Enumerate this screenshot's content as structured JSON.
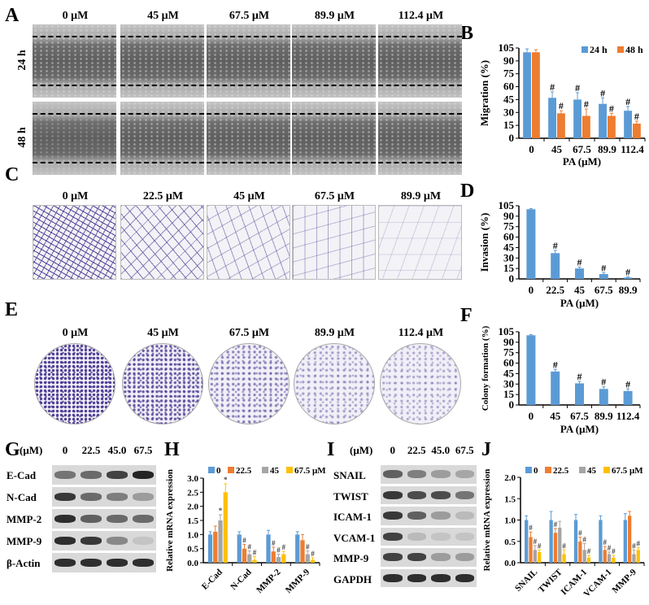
{
  "panels": {
    "A": {
      "label": "A",
      "columns": [
        "0 μM",
        "45 μM",
        "67.5 μM",
        "89.9 μM",
        "112.4 μM"
      ],
      "rows": [
        "24 h",
        "48 h"
      ]
    },
    "C": {
      "label": "C",
      "columns": [
        "0 μM",
        "22.5 μM",
        "45 μM",
        "67.5 μM",
        "89.9 μM"
      ]
    },
    "E": {
      "label": "E",
      "columns": [
        "0 μM",
        "45 μM",
        "67.5 μM",
        "89.9 μM",
        "112.4 μM"
      ]
    },
    "G": {
      "label": "G",
      "unit": "(μM)",
      "columns": [
        "0",
        "22.5",
        "45.0",
        "67.5"
      ],
      "rows": [
        {
          "name": "E-Cad",
          "band_intensity": [
            0.5,
            0.55,
            0.75,
            0.9
          ]
        },
        {
          "name": "N-Cad",
          "band_intensity": [
            0.8,
            0.55,
            0.45,
            0.3
          ]
        },
        {
          "name": "MMP-2",
          "band_intensity": [
            0.85,
            0.6,
            0.55,
            0.55
          ]
        },
        {
          "name": "MMP-9",
          "band_intensity": [
            0.85,
            0.8,
            0.4,
            0.1
          ]
        },
        {
          "name": "β-Actin",
          "band_intensity": [
            0.85,
            0.85,
            0.85,
            0.85
          ]
        }
      ]
    },
    "I": {
      "label": "I",
      "unit": "(μM)",
      "columns": [
        "0",
        "22.5",
        "45.0",
        "67.5"
      ],
      "rows": [
        {
          "name": "SNAIL",
          "band_intensity": [
            0.6,
            0.45,
            0.3,
            0.25
          ]
        },
        {
          "name": "TWIST",
          "band_intensity": [
            0.8,
            0.7,
            0.7,
            0.5
          ]
        },
        {
          "name": "ICAM-1",
          "band_intensity": [
            0.8,
            0.6,
            0.3,
            0.15
          ]
        },
        {
          "name": "VCAM-1",
          "band_intensity": [
            0.75,
            0.15,
            0.1,
            0.1
          ]
        },
        {
          "name": "MMP-9",
          "band_intensity": [
            0.75,
            0.75,
            0.3,
            0.3
          ]
        },
        {
          "name": "GAPDH",
          "band_intensity": [
            0.85,
            0.85,
            0.85,
            0.85
          ]
        }
      ]
    }
  },
  "colors": {
    "s0": "#5b9bd5",
    "s1": "#ed7d31",
    "s2": "#a5a5a5",
    "s3": "#ffc000",
    "stain": "#4b3a93"
  },
  "chart_data": [
    {
      "panel": "B",
      "type": "bar",
      "ylabel": "Migration  (%)",
      "xlabel": "PA (μM)",
      "ylim": [
        0,
        105
      ],
      "yticks": [
        "0",
        "15",
        "30",
        "45",
        "60",
        "75",
        "90",
        "105"
      ],
      "categories": [
        "0",
        "45",
        "67.5",
        "89.9",
        "112.4"
      ],
      "legend": "top-right",
      "series": [
        {
          "name": "24 h",
          "values": [
            100,
            47,
            45,
            40,
            32
          ],
          "errors": [
            4,
            7,
            8,
            7,
            5
          ],
          "marks": [
            "",
            "#",
            "#",
            "#",
            "#"
          ]
        },
        {
          "name": "48 h",
          "values": [
            100,
            29,
            26,
            26,
            17
          ],
          "errors": [
            3,
            3,
            8,
            3,
            3
          ],
          "marks": [
            "",
            "#",
            "#",
            "#",
            "#"
          ]
        }
      ]
    },
    {
      "panel": "D",
      "type": "bar",
      "ylabel": "Invasion  (%)",
      "xlabel": "PA (μM)",
      "ylim": [
        0,
        105
      ],
      "yticks": [
        "0",
        "15",
        "30",
        "45",
        "60",
        "75",
        "90",
        "105"
      ],
      "categories": [
        "0",
        "22.5",
        "45",
        "67.5",
        "89.9"
      ],
      "series": [
        {
          "values": [
            100,
            37,
            15,
            7,
            2
          ],
          "errors": [
            1,
            4,
            2,
            2,
            1
          ],
          "marks": [
            "",
            "#",
            "#",
            "#",
            "#"
          ]
        }
      ]
    },
    {
      "panel": "F",
      "type": "bar",
      "ylabel": "Colony formation (%)",
      "xlabel": "PA (μM)",
      "ylim": [
        0,
        105
      ],
      "yticks": [
        "0",
        "15",
        "30",
        "45",
        "60",
        "75",
        "90",
        "105"
      ],
      "categories": [
        "0",
        "45",
        "67.5",
        "89.9",
        "112.4"
      ],
      "series": [
        {
          "values": [
            100,
            48,
            31,
            23,
            20
          ],
          "errors": [
            1,
            3,
            3,
            3,
            3
          ],
          "marks": [
            "",
            "#",
            "#",
            "#",
            "#"
          ]
        }
      ]
    },
    {
      "panel": "H",
      "type": "bar",
      "ylabel": "Relative mRNA expression",
      "xlabel": "",
      "ylim": [
        0,
        3
      ],
      "yticks": [
        "0.0",
        "0.5",
        "1.0",
        "1.5",
        "2.0",
        "2.5",
        "3.0"
      ],
      "categories": [
        "E-Cad",
        "N-Cad",
        "MMP-2",
        "MMP-9"
      ],
      "legend": "top",
      "series": [
        {
          "name": "0",
          "values": [
            1,
            1,
            1,
            1
          ],
          "errors": [
            0.1,
            0.1,
            0.15,
            0.1
          ],
          "marks": [
            "",
            "",
            "",
            ""
          ]
        },
        {
          "name": "22.5",
          "values": [
            1.1,
            0.5,
            0.4,
            0.8
          ],
          "errors": [
            0.2,
            0.15,
            0.15,
            0.2
          ],
          "marks": [
            "",
            "#",
            "#",
            ""
          ]
        },
        {
          "name": "45",
          "values": [
            1.5,
            0.3,
            0.2,
            0.3
          ],
          "errors": [
            0.2,
            0.12,
            0.1,
            0.12
          ],
          "marks": [
            "*",
            "#",
            "#",
            "#"
          ]
        },
        {
          "name": "67.5 μM",
          "values": [
            2.5,
            0.1,
            0.3,
            0.1
          ],
          "errors": [
            0.3,
            0.12,
            0.1,
            0.08
          ],
          "marks": [
            "*",
            "#",
            "#",
            "#"
          ]
        }
      ]
    },
    {
      "panel": "J",
      "type": "bar",
      "ylabel": "Relative mRNA expression",
      "xlabel": "",
      "ylim": [
        0,
        2
      ],
      "yticks": [
        "0.0",
        "0.5",
        "1.0",
        "1.5",
        "2.0"
      ],
      "categories": [
        "SNAIL",
        "TWIST",
        "ICAM-1",
        "VCAM-1",
        "MMP-9"
      ],
      "legend": "top",
      "series": [
        {
          "name": "0",
          "values": [
            1,
            1,
            1,
            1,
            1
          ],
          "errors": [
            0.1,
            0.2,
            0.13,
            0.1,
            0.15
          ],
          "marks": [
            "",
            "",
            "",
            "",
            ""
          ]
        },
        {
          "name": "22.5",
          "values": [
            0.6,
            0.7,
            0.5,
            0.3,
            1.1
          ],
          "errors": [
            0.12,
            0.1,
            0.1,
            0.08,
            0.1
          ],
          "marks": [
            "#",
            "#",
            "#",
            "#",
            ""
          ]
        },
        {
          "name": "45",
          "values": [
            0.3,
            0.82,
            0.3,
            0.2,
            0.2
          ],
          "errors": [
            0.1,
            0.15,
            0.15,
            0.05,
            0.1
          ],
          "marks": [
            "#",
            "",
            "#",
            "#",
            "#"
          ]
        },
        {
          "name": "67.5 μM",
          "values": [
            0.25,
            0.2,
            0.12,
            0.12,
            0.3
          ],
          "errors": [
            0.05,
            0.1,
            0.05,
            0.05,
            0.05
          ],
          "marks": [
            "#",
            "#",
            "#",
            "#",
            "#"
          ]
        }
      ]
    }
  ]
}
